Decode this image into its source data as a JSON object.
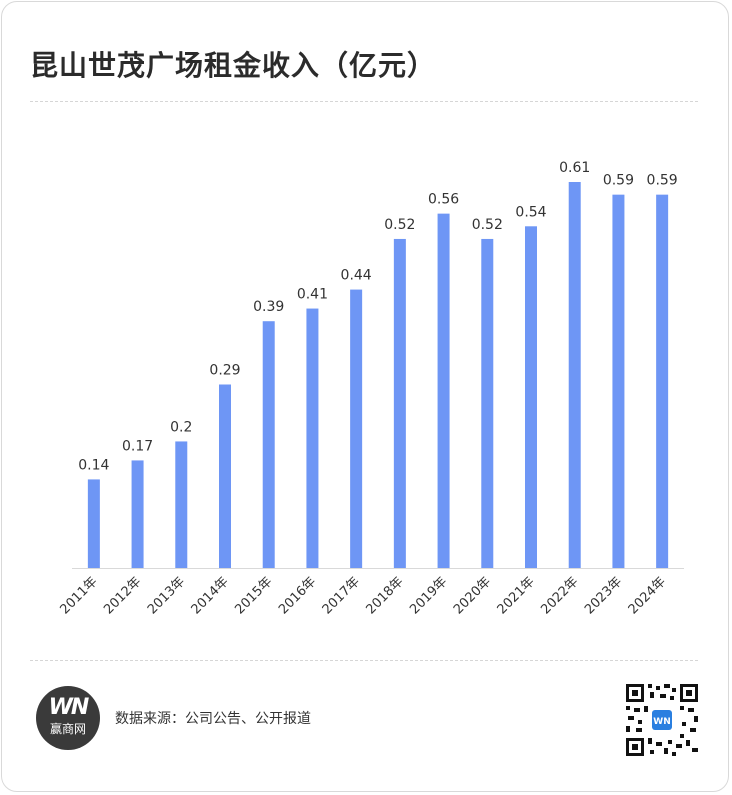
{
  "header": {
    "title": "昆山世茂广场租金收入（亿元）"
  },
  "chart_data": {
    "type": "bar",
    "title": "昆山世茂广场租金收入（亿元）",
    "categories": [
      "2011年",
      "2012年",
      "2013年",
      "2014年",
      "2015年",
      "2016年",
      "2017年",
      "2018年",
      "2019年",
      "2020年",
      "2021年",
      "2022年",
      "2023年",
      "2024年"
    ],
    "values": [
      0.14,
      0.17,
      0.2,
      0.29,
      0.39,
      0.41,
      0.44,
      0.52,
      0.56,
      0.52,
      0.54,
      0.61,
      0.59,
      0.59
    ],
    "value_labels": [
      "0.14",
      "0.17",
      "0.2",
      "0.29",
      "0.39",
      "0.41",
      "0.44",
      "0.52",
      "0.56",
      "0.52",
      "0.54",
      "0.61",
      "0.59",
      "0.59"
    ],
    "xlabel": "",
    "ylabel": "",
    "ylim": [
      0,
      0.7
    ],
    "grid": false,
    "bar_color": "#6e96f5"
  },
  "footer": {
    "logo_mark": "WN",
    "logo_text": "赢商网",
    "source": "数据来源：公司公告、公开报道",
    "qr_icon": "qr-code-icon"
  },
  "colors": {
    "bar": "#6e96f5",
    "title": "#2b2b2b",
    "label": "#333333"
  }
}
